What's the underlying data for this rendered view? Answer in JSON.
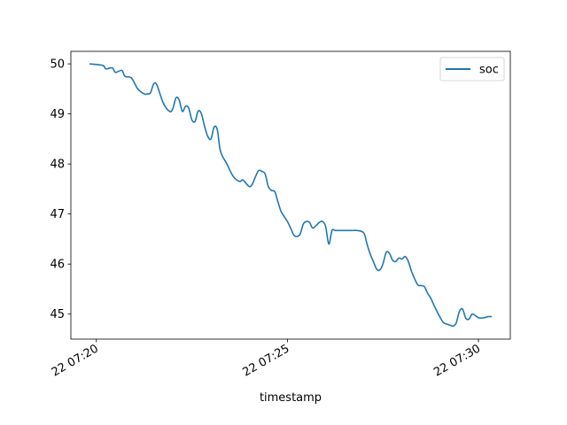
{
  "chart_data": {
    "type": "line",
    "xlabel": "timestamp",
    "ylabel": "",
    "x_range": [
      "22 07:19:20",
      "22 07:30:50"
    ],
    "ylim": [
      44.5,
      50.25
    ],
    "x_ticks": [
      {
        "t": "22 07:20:00",
        "label": "22 07:20"
      },
      {
        "t": "22 07:25:00",
        "label": "22 07:25"
      },
      {
        "t": "22 07:30:00",
        "label": "22 07:30"
      }
    ],
    "y_ticks": [
      45,
      46,
      47,
      48,
      49,
      50
    ],
    "grid": false,
    "legend": {
      "placement": "top-right",
      "entries": [
        "soc"
      ]
    },
    "series": [
      {
        "name": "soc",
        "color": "#1f77b4",
        "x": [
          "22 07:19:50",
          "22 07:20:10",
          "22 07:20:15",
          "22 07:20:25",
          "22 07:20:30",
          "22 07:20:40",
          "22 07:20:45",
          "22 07:20:55",
          "22 07:21:05",
          "22 07:21:15",
          "22 07:21:20",
          "22 07:21:25",
          "22 07:21:30",
          "22 07:21:35",
          "22 07:21:45",
          "22 07:21:55",
          "22 07:22:00",
          "22 07:22:05",
          "22 07:22:10",
          "22 07:22:15",
          "22 07:22:20",
          "22 07:22:25",
          "22 07:22:30",
          "22 07:22:35",
          "22 07:22:40",
          "22 07:22:45",
          "22 07:22:50",
          "22 07:22:55",
          "22 07:23:00",
          "22 07:23:05",
          "22 07:23:10",
          "22 07:23:15",
          "22 07:23:25",
          "22 07:23:35",
          "22 07:23:45",
          "22 07:23:50",
          "22 07:24:00",
          "22 07:24:05",
          "22 07:24:10",
          "22 07:24:15",
          "22 07:24:20",
          "22 07:24:25",
          "22 07:24:30",
          "22 07:24:35",
          "22 07:24:40",
          "22 07:24:45",
          "22 07:24:50",
          "22 07:24:55",
          "22 07:25:00",
          "22 07:25:05",
          "22 07:25:10",
          "22 07:25:15",
          "22 07:25:20",
          "22 07:25:25",
          "22 07:25:30",
          "22 07:25:35",
          "22 07:25:40",
          "22 07:25:50",
          "22 07:25:55",
          "22 07:26:00",
          "22 07:26:05",
          "22 07:26:10",
          "22 07:26:15",
          "22 07:26:20",
          "22 07:26:25",
          "22 07:26:30",
          "22 07:26:40",
          "22 07:26:50",
          "22 07:27:00",
          "22 07:27:05",
          "22 07:27:10",
          "22 07:27:15",
          "22 07:27:20",
          "22 07:27:25",
          "22 07:27:30",
          "22 07:27:35",
          "22 07:27:40",
          "22 07:27:45",
          "22 07:27:50",
          "22 07:27:55",
          "22 07:28:00",
          "22 07:28:05",
          "22 07:28:10",
          "22 07:28:15",
          "22 07:28:20",
          "22 07:28:25",
          "22 07:28:30",
          "22 07:28:35",
          "22 07:28:40",
          "22 07:28:45",
          "22 07:28:50",
          "22 07:28:55",
          "22 07:29:00",
          "22 07:29:05",
          "22 07:29:10",
          "22 07:29:15",
          "22 07:29:20",
          "22 07:29:25",
          "22 07:29:30",
          "22 07:29:35",
          "22 07:29:40",
          "22 07:29:45",
          "22 07:29:50",
          "22 07:29:55",
          "22 07:30:00",
          "22 07:30:05",
          "22 07:30:10",
          "22 07:30:15",
          "22 07:30:20"
        ],
        "y": [
          50.0,
          49.97,
          49.9,
          49.92,
          49.83,
          49.87,
          49.75,
          49.72,
          49.5,
          49.4,
          49.4,
          49.42,
          49.6,
          49.58,
          49.22,
          49.05,
          49.1,
          49.32,
          49.28,
          49.05,
          49.15,
          49.12,
          48.88,
          48.85,
          49.06,
          49.0,
          48.75,
          48.55,
          48.5,
          48.74,
          48.68,
          48.25,
          48.0,
          47.75,
          47.65,
          47.68,
          47.55,
          47.6,
          47.75,
          47.87,
          47.85,
          47.8,
          47.55,
          47.47,
          47.45,
          47.25,
          47.05,
          46.95,
          46.85,
          46.72,
          46.58,
          46.55,
          46.6,
          46.8,
          46.85,
          46.83,
          46.72,
          46.83,
          46.85,
          46.75,
          46.4,
          46.67,
          46.67,
          46.67,
          46.67,
          46.67,
          46.67,
          46.67,
          46.62,
          46.4,
          46.2,
          46.05,
          45.9,
          45.88,
          46.0,
          46.23,
          46.22,
          46.08,
          46.05,
          46.12,
          46.1,
          46.15,
          46.05,
          45.85,
          45.7,
          45.58,
          45.57,
          45.55,
          45.42,
          45.32,
          45.18,
          45.05,
          44.93,
          44.83,
          44.8,
          44.78,
          44.76,
          44.82,
          45.05,
          45.1,
          44.92,
          44.9,
          45.0,
          44.97,
          44.93,
          44.92,
          44.93,
          44.95,
          44.95
        ]
      }
    ]
  }
}
